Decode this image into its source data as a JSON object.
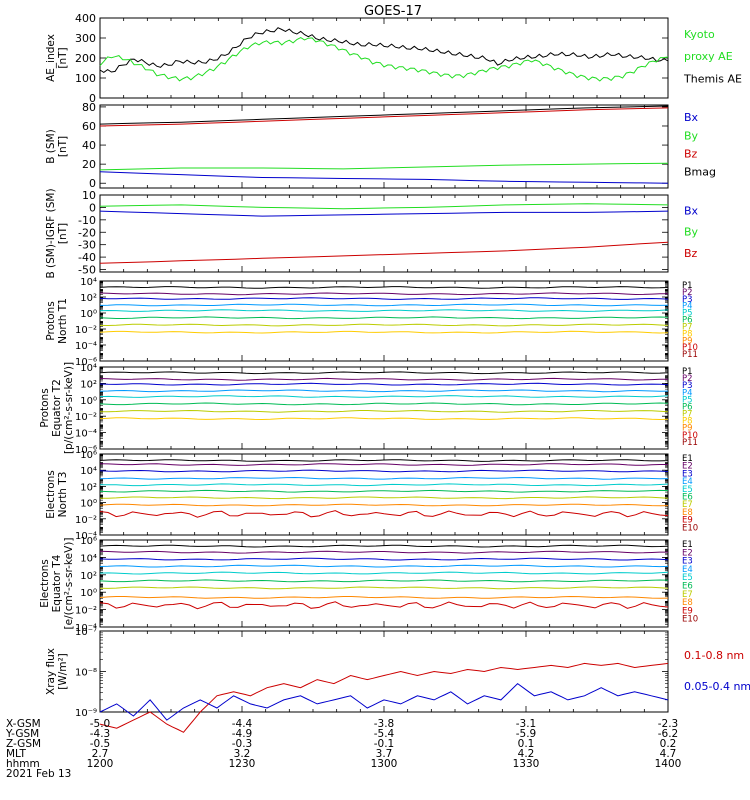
{
  "title": "GOES-17",
  "colors": {
    "black": "#000000",
    "green": "#22dd22",
    "blue": "#0000cc",
    "red": "#cc0000",
    "navy": "#000099",
    "purple": "#660066"
  },
  "time_axis": {
    "ticks": [
      "1200",
      "1230",
      "1300",
      "1330",
      "1400"
    ],
    "date": "2021 Feb 13",
    "rows": [
      {
        "label": "X-GSM",
        "values": [
          "-5.0",
          "-4.4",
          "-3.8",
          "-3.1",
          "-2.3"
        ]
      },
      {
        "label": "Y-GSM",
        "values": [
          "-4.3",
          "-4.9",
          "-5.4",
          "-5.9",
          "-6.2"
        ]
      },
      {
        "label": "Z-GSM",
        "values": [
          "-0.5",
          "-0.3",
          "-0.1",
          "0.1",
          "0.2"
        ]
      },
      {
        "label": "MLT",
        "values": [
          "2.7",
          "3.2",
          "3.7",
          "4.2",
          "4.7"
        ]
      },
      {
        "label": "hhmm",
        "values": [
          "1200",
          "1230",
          "1300",
          "1330",
          "1400"
        ]
      }
    ]
  },
  "chart_data": [
    {
      "type": "line",
      "ylabel": [
        "AE_index",
        "[nT]"
      ],
      "ylim": [
        0,
        400
      ],
      "yticks": [
        "400",
        "300",
        "200",
        "100",
        "0"
      ],
      "legend": [
        {
          "text": "Kyoto",
          "color": "#22dd22"
        },
        {
          "text": "proxy AE",
          "color": "#22dd22"
        },
        {
          "text": "Themis AE",
          "color": "#000000"
        }
      ],
      "series": [
        {
          "name": "Themis AE",
          "color": "#000000",
          "values": [
            140,
            130,
            165,
            195,
            178,
            160,
            165,
            185,
            178,
            178,
            190,
            215,
            255,
            300,
            325,
            335,
            345,
            330,
            320,
            300,
            290,
            285,
            275,
            265,
            268,
            262,
            258,
            250,
            248,
            240,
            232,
            222,
            215,
            205,
            198,
            170,
            190,
            200,
            205,
            210,
            220,
            218,
            215,
            205,
            210,
            220,
            210,
            205,
            200,
            190,
            185
          ]
        },
        {
          "name": "Kyoto proxy AE",
          "color": "#22dd22",
          "values": [
            170,
            210,
            200,
            175,
            150,
            120,
            105,
            95,
            100,
            120,
            145,
            180,
            220,
            255,
            275,
            280,
            275,
            285,
            300,
            290,
            270,
            250,
            225,
            205,
            180,
            165,
            155,
            148,
            140,
            130,
            118,
            110,
            112,
            125,
            140,
            152,
            160,
            175,
            190,
            172,
            150,
            130,
            112,
            100,
            95,
            98,
            110,
            135,
            165,
            190,
            205
          ]
        }
      ]
    },
    {
      "type": "line",
      "ylabel": [
        "B (SM)",
        "[nT]"
      ],
      "ylim": [
        -5,
        82
      ],
      "yticks": [
        "80",
        "60",
        "40",
        "20",
        "0"
      ],
      "legend": [
        {
          "text": "Bx",
          "color": "#0000cc"
        },
        {
          "text": "By",
          "color": "#22dd22"
        },
        {
          "text": "Bz",
          "color": "#cc0000"
        },
        {
          "text": "Bmag",
          "color": "#000000"
        }
      ],
      "series": [
        {
          "name": "Bmag",
          "color": "#000000",
          "values": [
            62,
            64,
            67,
            70,
            73,
            76,
            79,
            81
          ]
        },
        {
          "name": "Bz",
          "color": "#cc0000",
          "values": [
            60,
            62,
            65,
            68,
            71,
            74,
            77,
            79
          ]
        },
        {
          "name": "By",
          "color": "#22dd22",
          "values": [
            14,
            16,
            16,
            15,
            17,
            19,
            20,
            21
          ]
        },
        {
          "name": "Bx",
          "color": "#0000cc",
          "values": [
            12,
            9,
            6,
            5,
            4,
            2,
            1,
            0
          ]
        }
      ]
    },
    {
      "type": "line",
      "ylabel": [
        "B (SM)-IGRF (SM)",
        "[nT]"
      ],
      "ylim": [
        -52,
        10
      ],
      "yticks": [
        "10",
        "0",
        "-10",
        "-20",
        "-30",
        "-40",
        "-50"
      ],
      "legend": [
        {
          "text": "Bx",
          "color": "#0000cc"
        },
        {
          "text": "By",
          "color": "#22dd22"
        },
        {
          "text": "Bz",
          "color": "#cc0000"
        }
      ],
      "series": [
        {
          "name": "By",
          "color": "#22dd22",
          "values": [
            1,
            2,
            0,
            -1,
            0,
            2,
            3,
            2
          ]
        },
        {
          "name": "Bx",
          "color": "#0000cc",
          "values": [
            -3,
            -5,
            -7,
            -6,
            -5,
            -4,
            -4,
            -3
          ]
        },
        {
          "name": "Bz",
          "color": "#cc0000",
          "values": [
            -45,
            -43,
            -41,
            -39,
            -37,
            -35,
            -32,
            -28
          ]
        }
      ]
    },
    {
      "type": "line",
      "log": true,
      "ylabel": [
        "Protons",
        "North T1"
      ],
      "ylim_exp": [
        -6,
        4
      ],
      "ytick_exps": [
        4,
        2,
        0,
        -2,
        -4,
        -6
      ],
      "legend": [
        {
          "text": "P1",
          "color": "#000000"
        },
        {
          "text": "P2",
          "color": "#660066"
        },
        {
          "text": "P3",
          "color": "#0000cc"
        },
        {
          "text": "P4",
          "color": "#0099ff"
        },
        {
          "text": "P5",
          "color": "#00cccc"
        },
        {
          "text": "P6",
          "color": "#00bb55"
        },
        {
          "text": "P7",
          "color": "#bbcc00"
        },
        {
          "text": "P8",
          "color": "#ffcc00"
        },
        {
          "text": "P9",
          "color": "#ff8800"
        },
        {
          "text": "P10",
          "color": "#cc0000"
        },
        {
          "text": "P11",
          "color": "#990000"
        }
      ],
      "series": [
        {
          "name": "P1",
          "color": "#000000",
          "level": 3.2
        },
        {
          "name": "P2",
          "color": "#660066",
          "level": 2.4
        },
        {
          "name": "P3",
          "color": "#0000cc",
          "level": 1.8
        },
        {
          "name": "P4",
          "color": "#0099ff",
          "level": 1.0
        },
        {
          "name": "P5",
          "color": "#00cccc",
          "level": 0.3
        },
        {
          "name": "P6",
          "color": "#00bb55",
          "level": -0.6
        },
        {
          "name": "P7",
          "color": "#bbcc00",
          "level": -1.5
        },
        {
          "name": "P8",
          "color": "#ffcc00",
          "level": -2.4
        }
      ]
    },
    {
      "type": "line",
      "log": true,
      "ylabel": [
        "Protons",
        "Equator T2",
        "[p/(cm²-s-sr-keV)]"
      ],
      "ylim_exp": [
        -6,
        4
      ],
      "ytick_exps": [
        4,
        2,
        0,
        -2,
        -4,
        -6
      ],
      "legend": [
        {
          "text": "P1",
          "color": "#000000"
        },
        {
          "text": "P2",
          "color": "#660066"
        },
        {
          "text": "P3",
          "color": "#0000cc"
        },
        {
          "text": "P4",
          "color": "#0099ff"
        },
        {
          "text": "P5",
          "color": "#00cccc"
        },
        {
          "text": "P6",
          "color": "#00bb55"
        },
        {
          "text": "P7",
          "color": "#bbcc00"
        },
        {
          "text": "P8",
          "color": "#ffcc00"
        },
        {
          "text": "P9",
          "color": "#ff8800"
        },
        {
          "text": "P10",
          "color": "#cc0000"
        },
        {
          "text": "P11",
          "color": "#990000"
        }
      ],
      "series": [
        {
          "name": "P1",
          "color": "#000000",
          "level": 3.3
        },
        {
          "name": "P2",
          "color": "#660066",
          "level": 2.5
        },
        {
          "name": "P3",
          "color": "#0000cc",
          "level": 1.9
        },
        {
          "name": "P4",
          "color": "#0099ff",
          "level": 1.1
        },
        {
          "name": "P5",
          "color": "#00cccc",
          "level": 0.4
        },
        {
          "name": "P6",
          "color": "#00bb55",
          "level": -0.5
        },
        {
          "name": "P7",
          "color": "#bbcc00",
          "level": -1.4
        },
        {
          "name": "P8",
          "color": "#ffcc00",
          "level": -2.3
        }
      ]
    },
    {
      "type": "line",
      "log": true,
      "ylabel": [
        "Electrons",
        "North T3"
      ],
      "ylim_exp": [
        -4,
        6
      ],
      "ytick_exps": [
        6,
        4,
        2,
        0,
        -2,
        -4
      ],
      "legend": [
        {
          "text": "E1",
          "color": "#000000"
        },
        {
          "text": "E2",
          "color": "#660066"
        },
        {
          "text": "E3",
          "color": "#0000cc"
        },
        {
          "text": "E4",
          "color": "#0099ff"
        },
        {
          "text": "E5",
          "color": "#00cccc"
        },
        {
          "text": "E6",
          "color": "#00bb55"
        },
        {
          "text": "E7",
          "color": "#bbcc00"
        },
        {
          "text": "E8",
          "color": "#ff8800"
        },
        {
          "text": "E9",
          "color": "#cc0000"
        },
        {
          "text": "E10",
          "color": "#990000"
        }
      ],
      "series": [
        {
          "name": "E1",
          "color": "#000000",
          "level": 5.2
        },
        {
          "name": "E2",
          "color": "#660066",
          "level": 4.7
        },
        {
          "name": "E3",
          "color": "#0000cc",
          "level": 3.9
        },
        {
          "name": "E4",
          "color": "#0099ff",
          "level": 3.0
        },
        {
          "name": "E5",
          "color": "#00cccc",
          "level": 2.2
        },
        {
          "name": "E6",
          "color": "#00bb55",
          "level": 1.4
        },
        {
          "name": "E7",
          "color": "#bbcc00",
          "level": 0.6
        },
        {
          "name": "E8",
          "color": "#ff8800",
          "level": -0.3
        },
        {
          "name": "E9",
          "color": "#cc0000",
          "level": -1.4,
          "noisy": true
        }
      ]
    },
    {
      "type": "line",
      "log": true,
      "ylabel": [
        "Electrons",
        "Equator T4",
        "[e/(cm²-s-sr-keV)]"
      ],
      "ylim_exp": [
        -4,
        6
      ],
      "ytick_exps": [
        6,
        4,
        2,
        0,
        -2,
        -4
      ],
      "legend": [
        {
          "text": "E1",
          "color": "#000000"
        },
        {
          "text": "E2",
          "color": "#660066"
        },
        {
          "text": "E3",
          "color": "#0000cc"
        },
        {
          "text": "E4",
          "color": "#0099ff"
        },
        {
          "text": "E5",
          "color": "#00cccc"
        },
        {
          "text": "E6",
          "color": "#00bb55"
        },
        {
          "text": "E7",
          "color": "#bbcc00"
        },
        {
          "text": "E8",
          "color": "#ff8800"
        },
        {
          "text": "E9",
          "color": "#cc0000"
        },
        {
          "text": "E10",
          "color": "#990000"
        }
      ],
      "series": [
        {
          "name": "E1",
          "color": "#000000",
          "level": 5.3
        },
        {
          "name": "E2",
          "color": "#660066",
          "level": 4.6
        },
        {
          "name": "E3",
          "color": "#0000cc",
          "level": 3.8
        },
        {
          "name": "E4",
          "color": "#0099ff",
          "level": 3.0
        },
        {
          "name": "E5",
          "color": "#00cccc",
          "level": 2.2
        },
        {
          "name": "E6",
          "color": "#00bb55",
          "level": 1.3
        },
        {
          "name": "E7",
          "color": "#bbcc00",
          "level": 0.5
        },
        {
          "name": "E8",
          "color": "#ff8800",
          "level": -0.6
        },
        {
          "name": "E9",
          "color": "#cc0000",
          "level": -1.5,
          "noisy": true
        }
      ]
    },
    {
      "type": "line",
      "log": true,
      "ylabel": [
        "Xray flux",
        "[W/m²]"
      ],
      "ylim_exp": [
        -9,
        -7
      ],
      "ytick_exps": [
        -7,
        -8,
        -9
      ],
      "legend": [
        {
          "text": "0.1-0.8 nm",
          "color": "#cc0000"
        },
        {
          "text": "0.05-0.4 nm",
          "color": "#0000cc"
        }
      ],
      "series": [
        {
          "name": "0.1-0.8 nm",
          "color": "#cc0000",
          "values": [
            -9.3,
            -9.4,
            -9.2,
            -9.0,
            -9.3,
            -9.5,
            -9.0,
            -8.6,
            -8.5,
            -8.6,
            -8.4,
            -8.3,
            -8.4,
            -8.2,
            -8.3,
            -8.1,
            -8.2,
            -8.1,
            -8.0,
            -8.1,
            -8.0,
            -8.05,
            -7.95,
            -8.0,
            -7.9,
            -7.95,
            -7.9,
            -7.85,
            -7.9,
            -7.8,
            -7.85,
            -7.8,
            -7.9,
            -7.85,
            -7.8
          ]
        },
        {
          "name": "0.05-0.4 nm",
          "color": "#0000cc",
          "values": [
            -9.0,
            -8.8,
            -9.1,
            -8.7,
            -9.2,
            -8.9,
            -8.7,
            -8.9,
            -8.6,
            -8.8,
            -8.9,
            -8.7,
            -8.6,
            -8.8,
            -8.7,
            -8.6,
            -8.9,
            -8.7,
            -8.8,
            -8.6,
            -8.7,
            -8.5,
            -8.8,
            -8.6,
            -8.7,
            -8.3,
            -8.6,
            -8.5,
            -8.7,
            -8.6,
            -8.4,
            -8.6,
            -8.5,
            -8.6,
            -8.7
          ]
        }
      ]
    }
  ]
}
